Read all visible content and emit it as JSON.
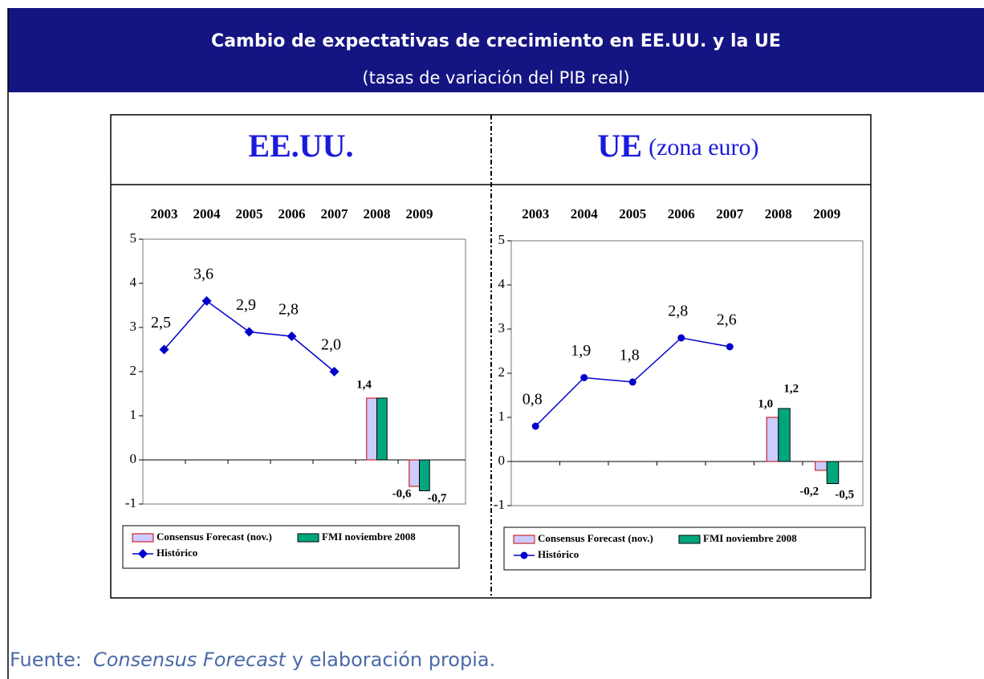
{
  "header": {
    "title": "Cambio de expectativas de crecimiento en EE.UU. y la UE",
    "subtitle": "(tasas de variación del PIB real)"
  },
  "footer": {
    "label": "Fuente:",
    "source": "Consensus Forecast",
    "rest": "y elaboración propia."
  },
  "chart_data": [
    {
      "type": "combo",
      "title": "EE.UU.",
      "marker": "diamond",
      "categories": [
        "2003",
        "2004",
        "2005",
        "2006",
        "2007",
        "2008",
        "2009"
      ],
      "ylim": [
        -1,
        5
      ],
      "yticks": [
        -1,
        0,
        1,
        2,
        3,
        4,
        5
      ],
      "series": [
        {
          "name": "Consensus Forecast (nov.)",
          "type": "bar",
          "color": "#ccccff",
          "stroke": "#cc0000",
          "values": [
            null,
            null,
            null,
            null,
            null,
            1.4,
            -0.6
          ],
          "value_labels": [
            null,
            null,
            null,
            null,
            null,
            "1,4",
            "-0,6"
          ]
        },
        {
          "name": "FMI noviembre 2008",
          "type": "bar",
          "color": "#00a67e",
          "stroke": "#000000",
          "values": [
            null,
            null,
            null,
            null,
            null,
            1.4,
            -0.7
          ],
          "value_labels": [
            null,
            null,
            null,
            null,
            null,
            null,
            "-0,7"
          ]
        },
        {
          "name": "Histórico",
          "type": "line",
          "color": "#0000cc",
          "values": [
            2.5,
            3.6,
            2.9,
            2.8,
            2.0,
            null,
            null
          ],
          "value_labels": [
            "2,5",
            "3,6",
            "2,9",
            "2,8",
            "2,0",
            null,
            null
          ]
        }
      ]
    },
    {
      "type": "combo",
      "title": "UE",
      "subtitle": "(zona euro)",
      "marker": "circle",
      "categories": [
        "2003",
        "2004",
        "2005",
        "2006",
        "2007",
        "2008",
        "2009"
      ],
      "ylim": [
        -1,
        5
      ],
      "yticks": [
        -1,
        0,
        1,
        2,
        3,
        4,
        5
      ],
      "series": [
        {
          "name": "Consensus Forecast (nov.)",
          "type": "bar",
          "color": "#ccccff",
          "stroke": "#cc0000",
          "values": [
            null,
            null,
            null,
            null,
            null,
            1.0,
            -0.2
          ],
          "value_labels": [
            null,
            null,
            null,
            null,
            null,
            "1,0",
            "-0,2"
          ]
        },
        {
          "name": "FMI noviembre 2008",
          "type": "bar",
          "color": "#00a67e",
          "stroke": "#000000",
          "values": [
            null,
            null,
            null,
            null,
            null,
            1.2,
            -0.5
          ],
          "value_labels": [
            null,
            null,
            null,
            null,
            null,
            "1,2",
            "-0,5"
          ]
        },
        {
          "name": "Histórico",
          "type": "line",
          "color": "#0000cc",
          "values": [
            0.8,
            1.9,
            1.8,
            2.8,
            2.6,
            null,
            null
          ],
          "value_labels": [
            "0,8",
            "1,9",
            "1,8",
            "2,8",
            "2,6",
            null,
            null
          ]
        }
      ]
    }
  ]
}
